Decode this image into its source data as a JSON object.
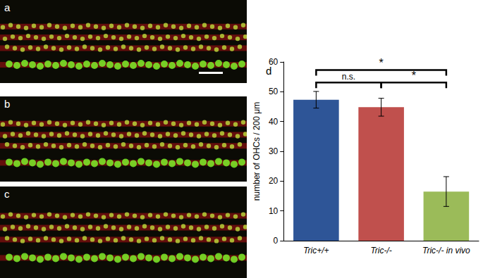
{
  "panels": [
    {
      "label": "a"
    },
    {
      "label": "b"
    },
    {
      "label": "c"
    }
  ],
  "chart_data": {
    "type": "bar",
    "label": "d",
    "categories": [
      "Tric+/+",
      "Tric-/-",
      "Tric-/- in vivo"
    ],
    "values": [
      47.3,
      44.8,
      16.5
    ],
    "errors": [
      2.8,
      3.0,
      5.0
    ],
    "colors": [
      "#2e5597",
      "#c0504d",
      "#9bbb59"
    ],
    "y_label": "number of OHCs / 200 μm",
    "ylim": [
      0,
      60
    ],
    "yticks": [
      0,
      10,
      20,
      30,
      40,
      50,
      60
    ],
    "grid": false,
    "annotations": [
      {
        "text": "n.s.",
        "from": 0,
        "to": 1
      },
      {
        "text": "*",
        "from": 1,
        "to": 2
      },
      {
        "text": "*",
        "from": 0,
        "to": 2
      }
    ]
  }
}
